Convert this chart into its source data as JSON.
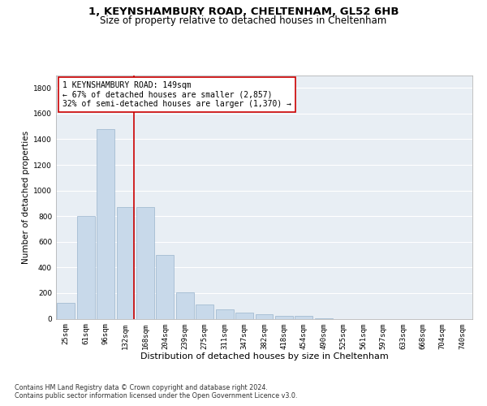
{
  "title1": "1, KEYNSHAMBURY ROAD, CHELTENHAM, GL52 6HB",
  "title2": "Size of property relative to detached houses in Cheltenham",
  "xlabel": "Distribution of detached houses by size in Cheltenham",
  "ylabel": "Number of detached properties",
  "footnote1": "Contains HM Land Registry data © Crown copyright and database right 2024.",
  "footnote2": "Contains public sector information licensed under the Open Government Licence v3.0.",
  "bar_labels": [
    "25sqm",
    "61sqm",
    "96sqm",
    "132sqm",
    "168sqm",
    "204sqm",
    "239sqm",
    "275sqm",
    "311sqm",
    "347sqm",
    "382sqm",
    "418sqm",
    "454sqm",
    "490sqm",
    "525sqm",
    "561sqm",
    "597sqm",
    "633sqm",
    "668sqm",
    "704sqm",
    "740sqm"
  ],
  "bar_values": [
    125,
    800,
    1480,
    870,
    870,
    495,
    205,
    110,
    70,
    50,
    35,
    20,
    20,
    5,
    0,
    0,
    0,
    0,
    0,
    0,
    0
  ],
  "bar_color": "#c8d9ea",
  "bar_edge_color": "#9ab4cc",
  "vline_color": "#cc0000",
  "vline_pos": 3.42,
  "annotation_text": "1 KEYNSHAMBURY ROAD: 149sqm\n← 67% of detached houses are smaller (2,857)\n32% of semi-detached houses are larger (1,370) →",
  "annotation_box_color": "#ffffff",
  "annotation_box_edge": "#cc0000",
  "ylim": [
    0,
    1900
  ],
  "yticks": [
    0,
    200,
    400,
    600,
    800,
    1000,
    1200,
    1400,
    1600,
    1800
  ],
  "bg_color": "#e8eef4",
  "grid_color": "#ffffff",
  "title1_fontsize": 9.5,
  "title2_fontsize": 8.5,
  "xlabel_fontsize": 8,
  "ylabel_fontsize": 7.5,
  "tick_fontsize": 6.5,
  "annot_fontsize": 7,
  "footnote_fontsize": 5.8
}
